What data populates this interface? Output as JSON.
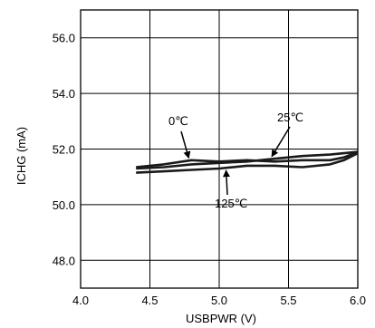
{
  "chart_data": {
    "type": "line",
    "title": "",
    "xlabel": "USBPWR (V)",
    "ylabel": "ICHG (mA)",
    "xlim": [
      4.0,
      6.0
    ],
    "ylim": [
      47.0,
      57.0
    ],
    "grid": true,
    "x_ticks": [
      4.0,
      4.5,
      5.0,
      5.5,
      6.0
    ],
    "x_tick_labels": [
      "4.0",
      "4.5",
      "5.0",
      "5.5",
      "6.0"
    ],
    "y_ticks": [
      48.0,
      50.0,
      52.0,
      54.0,
      56.0
    ],
    "y_tick_labels": [
      "48.0",
      "50.0",
      "52.0",
      "54.0",
      "56.0"
    ],
    "series": [
      {
        "name": "0℃",
        "x": [
          4.4,
          4.6,
          4.8,
          5.0,
          5.2,
          5.4,
          5.6,
          5.8,
          5.9,
          6.0
        ],
        "y": [
          51.35,
          51.45,
          51.6,
          51.55,
          51.6,
          51.55,
          51.6,
          51.6,
          51.7,
          51.9
        ]
      },
      {
        "name": "25℃",
        "x": [
          4.4,
          4.6,
          4.8,
          5.0,
          5.2,
          5.4,
          5.6,
          5.8,
          5.9,
          6.0
        ],
        "y": [
          51.3,
          51.35,
          51.45,
          51.5,
          51.55,
          51.65,
          51.75,
          51.8,
          51.85,
          51.9
        ]
      },
      {
        "name": "125℃",
        "x": [
          4.4,
          4.6,
          4.8,
          5.0,
          5.2,
          5.4,
          5.6,
          5.8,
          5.9,
          6.0
        ],
        "y": [
          51.15,
          51.2,
          51.25,
          51.3,
          51.4,
          51.4,
          51.35,
          51.45,
          51.6,
          51.85
        ]
      }
    ],
    "annotations": [
      {
        "text": "0℃",
        "series": "0℃"
      },
      {
        "text": "25℃",
        "series": "25℃"
      },
      {
        "text": "125℃",
        "series": "125℃"
      }
    ]
  }
}
